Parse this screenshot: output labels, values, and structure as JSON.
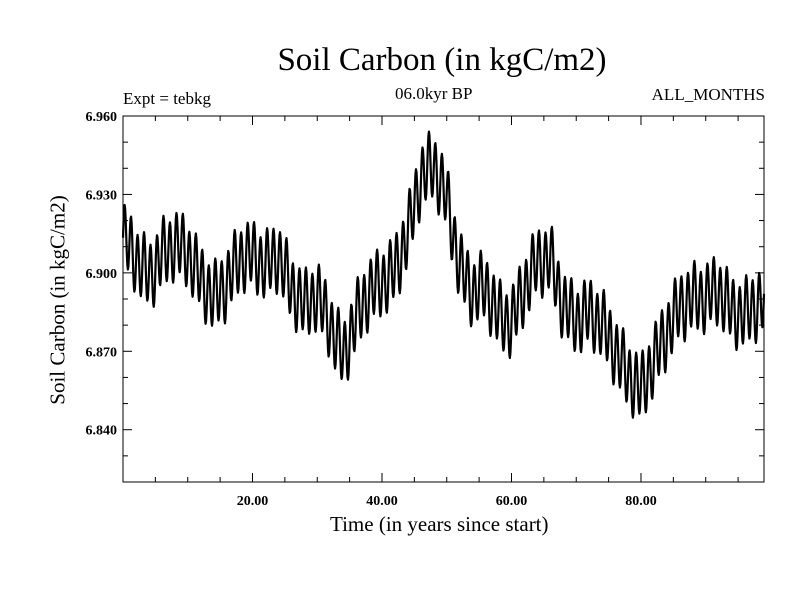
{
  "chart_data": {
    "type": "line",
    "title": "Soil Carbon (in kgC/m2)",
    "subtitle": "06.0kyr BP",
    "left_label": "Expt = tebkg",
    "right_label": "ALL_MONTHS",
    "xlabel": "Time (in years since start)",
    "ylabel": "Soil Carbon (in kgC/m2)",
    "xlim": [
      0,
      99
    ],
    "ylim": [
      6.82,
      6.96
    ],
    "xticks": [
      20,
      40,
      60,
      80
    ],
    "xtick_labels": [
      "20.00",
      "40.00",
      "60.00",
      "80.00"
    ],
    "yticks": [
      6.84,
      6.87,
      6.9,
      6.93,
      6.96
    ],
    "ytick_labels": [
      "6.840",
      "6.870",
      "6.900",
      "6.930",
      "6.960"
    ],
    "series": [
      {
        "name": "Soil Carbon",
        "trend_x": [
          0,
          2,
          4,
          6,
          8,
          10,
          12,
          14,
          16,
          18,
          20,
          22,
          24,
          26,
          28,
          30,
          32,
          34,
          36,
          38,
          40,
          42,
          44,
          46,
          48,
          50,
          52,
          54,
          56,
          58,
          60,
          62,
          64,
          66,
          68,
          70,
          72,
          74,
          76,
          78,
          80,
          82,
          84,
          86,
          88,
          90,
          92,
          94,
          96,
          99
        ],
        "trend_y": [
          6.912,
          6.905,
          6.9,
          6.908,
          6.91,
          6.906,
          6.898,
          6.892,
          6.896,
          6.904,
          6.906,
          6.904,
          6.908,
          6.893,
          6.886,
          6.892,
          6.882,
          6.868,
          6.881,
          6.892,
          6.898,
          6.902,
          6.914,
          6.935,
          6.942,
          6.93,
          6.902,
          6.891,
          6.894,
          6.885,
          6.882,
          6.893,
          6.903,
          6.906,
          6.889,
          6.882,
          6.883,
          6.88,
          6.872,
          6.862,
          6.854,
          6.865,
          6.878,
          6.889,
          6.89,
          6.889,
          6.893,
          6.887,
          6.885,
          6.888
        ],
        "amplitude": 0.012,
        "cycle_years": 1.0
      }
    ]
  }
}
